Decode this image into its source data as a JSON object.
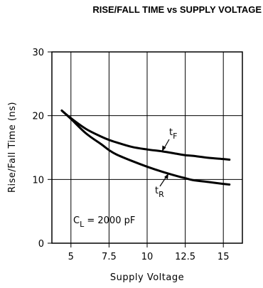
{
  "chart_data": {
    "type": "line",
    "title": "RISE/FALL TIME vs SUPPLY VOLTAGE",
    "xlabel": "Supply Voltage",
    "ylabel": "Rise/Fall Time (ns)",
    "xlim": [
      3.75,
      16.25
    ],
    "ylim": [
      0,
      30
    ],
    "x_ticks": [
      "5",
      "7.5",
      "10",
      "12.5",
      "15"
    ],
    "y_ticks": [
      "0",
      "10",
      "20",
      "30"
    ],
    "grid": true,
    "series": [
      {
        "name": "tF",
        "x": [
          4.4,
          5,
          6,
          7,
          7.5,
          8,
          9,
          10,
          11,
          12,
          12.5,
          13,
          14,
          15,
          15.4
        ],
        "y": [
          20.8,
          19.6,
          17.9,
          16.7,
          16.2,
          15.8,
          15.1,
          14.7,
          14.4,
          14.0,
          13.8,
          13.7,
          13.4,
          13.2,
          13.1
        ]
      },
      {
        "name": "tR",
        "x": [
          4.4,
          5,
          6,
          7,
          7.5,
          8,
          9,
          10,
          11,
          12,
          12.5,
          13,
          14,
          15,
          15.4
        ],
        "y": [
          20.8,
          19.5,
          17.2,
          15.5,
          14.6,
          13.9,
          12.9,
          12.0,
          11.2,
          10.5,
          10.2,
          9.9,
          9.6,
          9.3,
          9.2
        ]
      }
    ],
    "annotations": {
      "tf_main": "t",
      "tf_sub": "F",
      "tr_main": "t",
      "tr_sub": "R",
      "cl_main": "C",
      "cl_sub": "L",
      "cl_rest": " = 2000 pF"
    }
  }
}
